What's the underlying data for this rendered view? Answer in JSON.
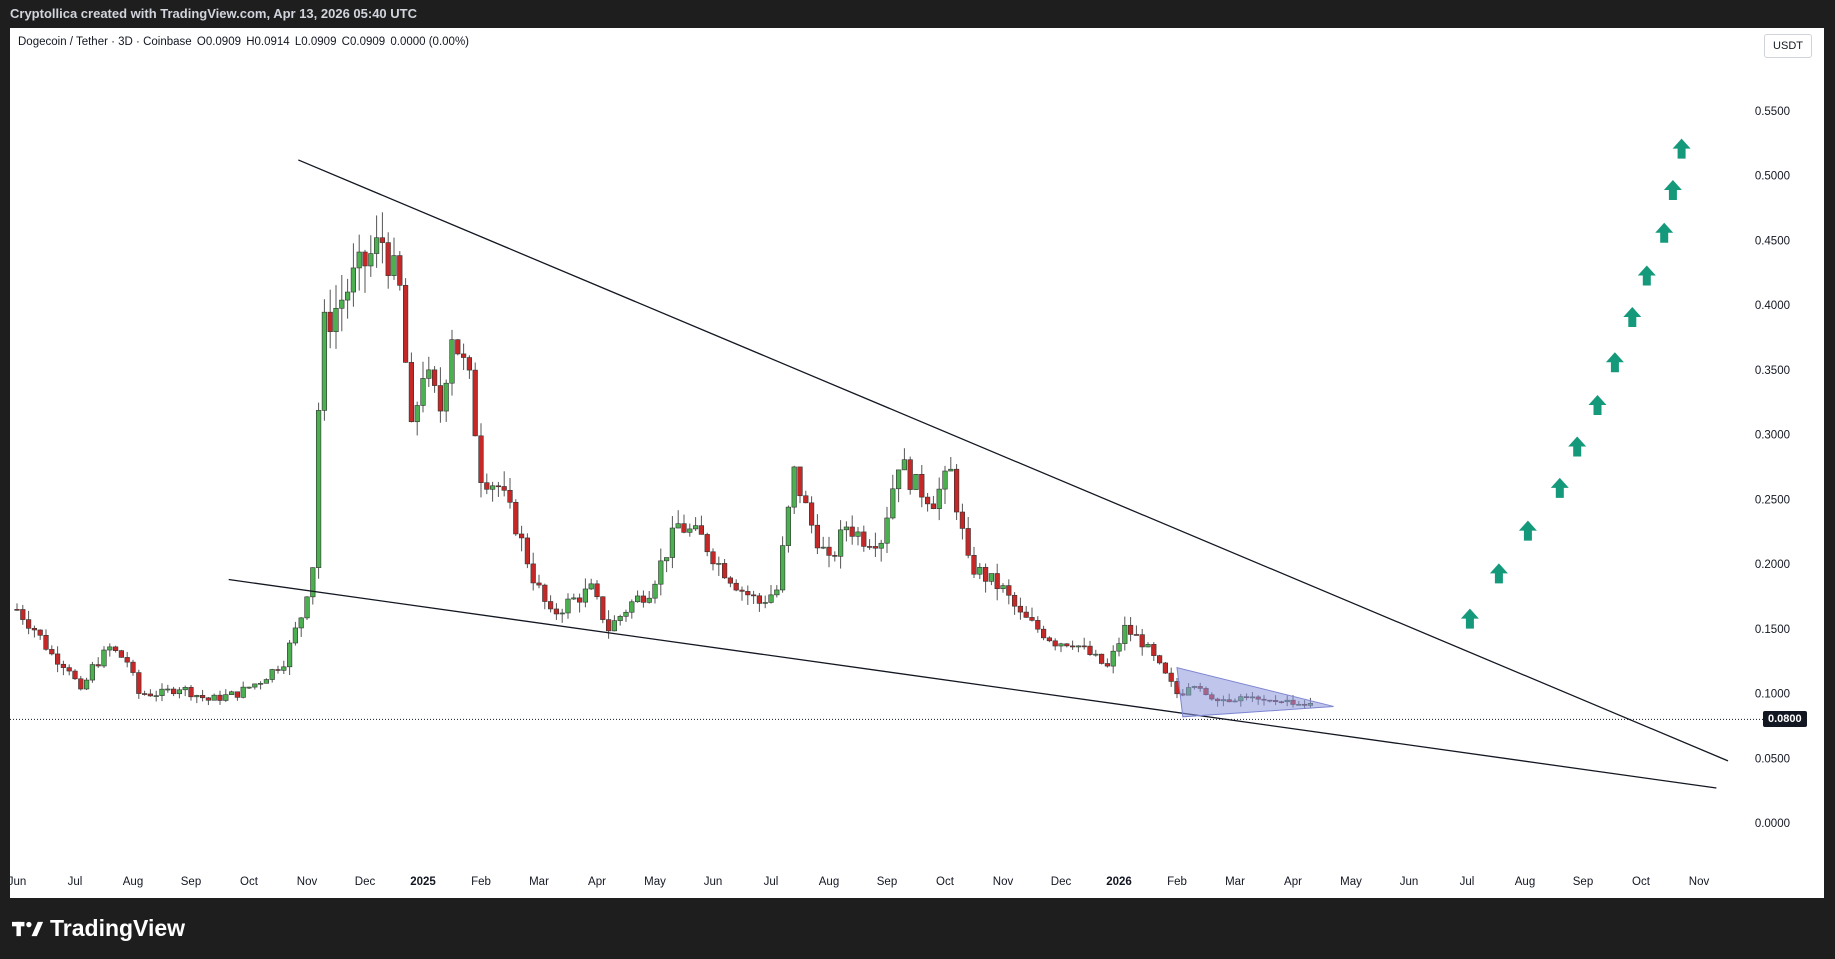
{
  "header": {
    "credit": "Cryptollica created with TradingView.com, Apr 13, 2026 05:40 UTC"
  },
  "legend": {
    "symbol": "Dogecoin / Tether · 3D · Coinbase",
    "open": "O0.0909",
    "high": "H0.0914",
    "low": "L0.0909",
    "close": "C0.0909",
    "change": "0.0000 (0.00%)"
  },
  "price_axis": {
    "unit": "USDT",
    "current_price_label": "0.0800"
  },
  "brand": {
    "name": "TradingView",
    "logo_icon": "tradingview-logo-icon"
  },
  "colors": {
    "up": "#26a69a",
    "up_fill": "#4caf50",
    "down": "#c62828",
    "arrow": "#14997a",
    "triangle": "#8c96dc"
  },
  "chart_data": {
    "type": "candlestick",
    "title": "Dogecoin / Tether · 3D · Coinbase",
    "y_ticks": [
      "0.5500",
      "0.5000",
      "0.4500",
      "0.4000",
      "0.3500",
      "0.3000",
      "0.2500",
      "0.2000",
      "0.1500",
      "0.1000",
      "0.0500",
      "0.0000"
    ],
    "ylim": [
      0.0,
      0.55
    ],
    "x_ticks": [
      {
        "label": "Jun",
        "month": 0
      },
      {
        "label": "Jul",
        "month": 1
      },
      {
        "label": "Aug",
        "month": 2
      },
      {
        "label": "Sep",
        "month": 3
      },
      {
        "label": "Oct",
        "month": 4
      },
      {
        "label": "Nov",
        "month": 5
      },
      {
        "label": "Dec",
        "month": 6
      },
      {
        "label": "2025",
        "month": 7,
        "bold": true
      },
      {
        "label": "Feb",
        "month": 8
      },
      {
        "label": "Mar",
        "month": 9
      },
      {
        "label": "Apr",
        "month": 10
      },
      {
        "label": "May",
        "month": 11
      },
      {
        "label": "Jun",
        "month": 12
      },
      {
        "label": "Jul",
        "month": 13
      },
      {
        "label": "Aug",
        "month": 14
      },
      {
        "label": "Sep",
        "month": 15
      },
      {
        "label": "Oct",
        "month": 16
      },
      {
        "label": "Nov",
        "month": 17
      },
      {
        "label": "Dec",
        "month": 18
      },
      {
        "label": "2026",
        "month": 19,
        "bold": true
      },
      {
        "label": "Feb",
        "month": 20
      },
      {
        "label": "Mar",
        "month": 21
      },
      {
        "label": "Apr",
        "month": 22
      },
      {
        "label": "May",
        "month": 23
      },
      {
        "label": "Jun",
        "month": 24
      },
      {
        "label": "Jul",
        "month": 25
      },
      {
        "label": "Aug",
        "month": 26
      },
      {
        "label": "Sep",
        "month": 27
      },
      {
        "label": "Oct",
        "month": 28
      },
      {
        "label": "Nov",
        "month": 29
      }
    ],
    "price_path": [
      [
        0.0,
        0.165
      ],
      [
        0.3,
        0.15
      ],
      [
        0.6,
        0.13
      ],
      [
        0.9,
        0.12
      ],
      [
        1.1,
        0.1
      ],
      [
        1.3,
        0.12
      ],
      [
        1.6,
        0.135
      ],
      [
        1.9,
        0.125
      ],
      [
        2.1,
        0.1
      ],
      [
        2.5,
        0.1
      ],
      [
        2.8,
        0.105
      ],
      [
        3.3,
        0.095
      ],
      [
        3.8,
        0.1
      ],
      [
        4.2,
        0.11
      ],
      [
        4.6,
        0.125
      ],
      [
        4.9,
        0.16
      ],
      [
        5.1,
        0.2
      ],
      [
        5.25,
        0.38
      ],
      [
        5.4,
        0.39
      ],
      [
        5.8,
        0.42
      ],
      [
        6.3,
        0.45
      ],
      [
        6.6,
        0.41
      ],
      [
        6.8,
        0.3
      ],
      [
        7.0,
        0.35
      ],
      [
        7.3,
        0.32
      ],
      [
        7.5,
        0.38
      ],
      [
        7.8,
        0.34
      ],
      [
        8.0,
        0.27
      ],
      [
        8.3,
        0.26
      ],
      [
        8.6,
        0.23
      ],
      [
        8.9,
        0.19
      ],
      [
        9.2,
        0.16
      ],
      [
        9.5,
        0.17
      ],
      [
        9.9,
        0.18
      ],
      [
        10.2,
        0.15
      ],
      [
        10.6,
        0.17
      ],
      [
        10.9,
        0.18
      ],
      [
        11.2,
        0.21
      ],
      [
        11.4,
        0.23
      ],
      [
        11.8,
        0.22
      ],
      [
        12.1,
        0.2
      ],
      [
        12.5,
        0.18
      ],
      [
        12.8,
        0.17
      ],
      [
        13.1,
        0.18
      ],
      [
        13.4,
        0.27
      ],
      [
        13.7,
        0.23
      ],
      [
        14.0,
        0.2
      ],
      [
        14.3,
        0.23
      ],
      [
        14.6,
        0.22
      ],
      [
        14.9,
        0.22
      ],
      [
        15.2,
        0.28
      ],
      [
        15.5,
        0.26
      ],
      [
        15.8,
        0.25
      ],
      [
        16.1,
        0.27
      ],
      [
        16.4,
        0.2
      ],
      [
        16.7,
        0.19
      ],
      [
        17.0,
        0.18
      ],
      [
        17.3,
        0.16
      ],
      [
        17.6,
        0.15
      ],
      [
        17.9,
        0.14
      ],
      [
        18.2,
        0.14
      ],
      [
        18.5,
        0.13
      ],
      [
        18.8,
        0.12
      ],
      [
        19.1,
        0.15
      ],
      [
        19.4,
        0.14
      ],
      [
        19.7,
        0.12
      ],
      [
        20.0,
        0.1
      ],
      [
        20.3,
        0.105
      ],
      [
        20.6,
        0.097
      ],
      [
        20.9,
        0.095
      ],
      [
        21.2,
        0.098
      ],
      [
        21.5,
        0.093
      ],
      [
        21.8,
        0.095
      ],
      [
        22.1,
        0.092
      ],
      [
        22.4,
        0.091
      ]
    ],
    "trendlines": [
      {
        "name": "upper",
        "from": [
          4.85,
          0.512
        ],
        "to": [
          29.5,
          0.048
        ]
      },
      {
        "name": "lower",
        "from": [
          3.65,
          0.188
        ],
        "to": [
          29.3,
          0.027
        ]
      }
    ],
    "price_line": 0.08,
    "triangle": [
      [
        20.0,
        0.12
      ],
      [
        20.1,
        0.082
      ],
      [
        22.7,
        0.09
      ]
    ],
    "projection_arrows": [
      [
        25.05,
        0.157
      ],
      [
        25.55,
        0.192
      ],
      [
        26.05,
        0.225
      ],
      [
        26.6,
        0.258
      ],
      [
        26.9,
        0.29
      ],
      [
        27.25,
        0.322
      ],
      [
        27.55,
        0.355
      ],
      [
        27.85,
        0.39
      ],
      [
        28.1,
        0.422
      ],
      [
        28.4,
        0.455
      ],
      [
        28.55,
        0.488
      ],
      [
        28.7,
        0.52
      ]
    ]
  }
}
